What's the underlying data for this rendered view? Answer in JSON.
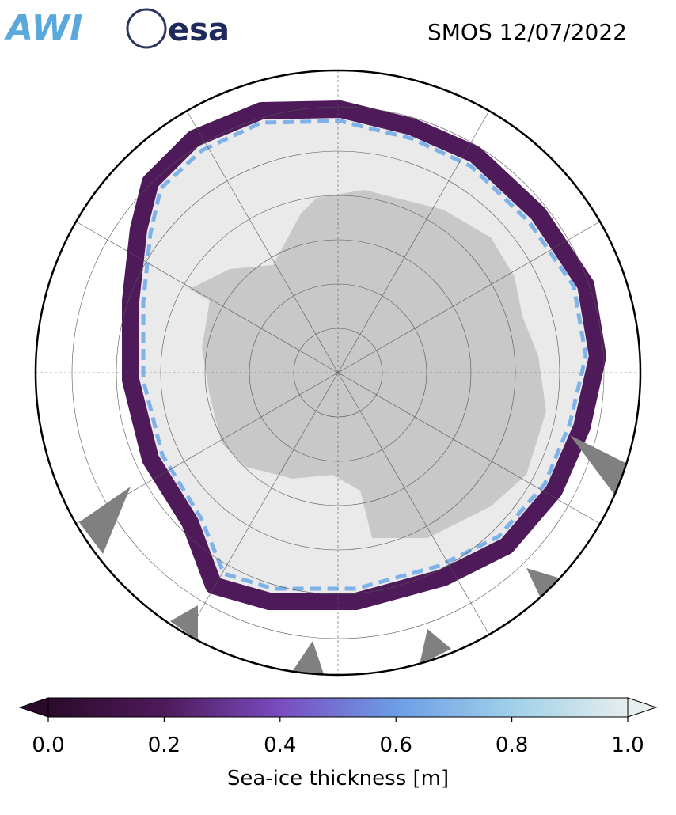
{
  "logos": {
    "left": "AWI",
    "right": "esa"
  },
  "title": "SMOS 12/07/2022",
  "colorbar": {
    "label": "Sea-ice thickness [m]",
    "lim": [
      0,
      1
    ],
    "ticks": [
      {
        "value": 0,
        "label": "0.0"
      },
      {
        "value": 0.2,
        "label": "0.2"
      },
      {
        "value": 0.4,
        "label": "0.4"
      },
      {
        "value": 0.6,
        "label": "0.6"
      },
      {
        "value": 0.8,
        "label": "0.8"
      },
      {
        "value": 1,
        "label": "1.0"
      }
    ],
    "colors": [
      "#2a0a2a",
      "#4e1a5a",
      "#7a4cc0",
      "#6c9de6",
      "#9fd0e8",
      "#e6eeee"
    ]
  }
}
